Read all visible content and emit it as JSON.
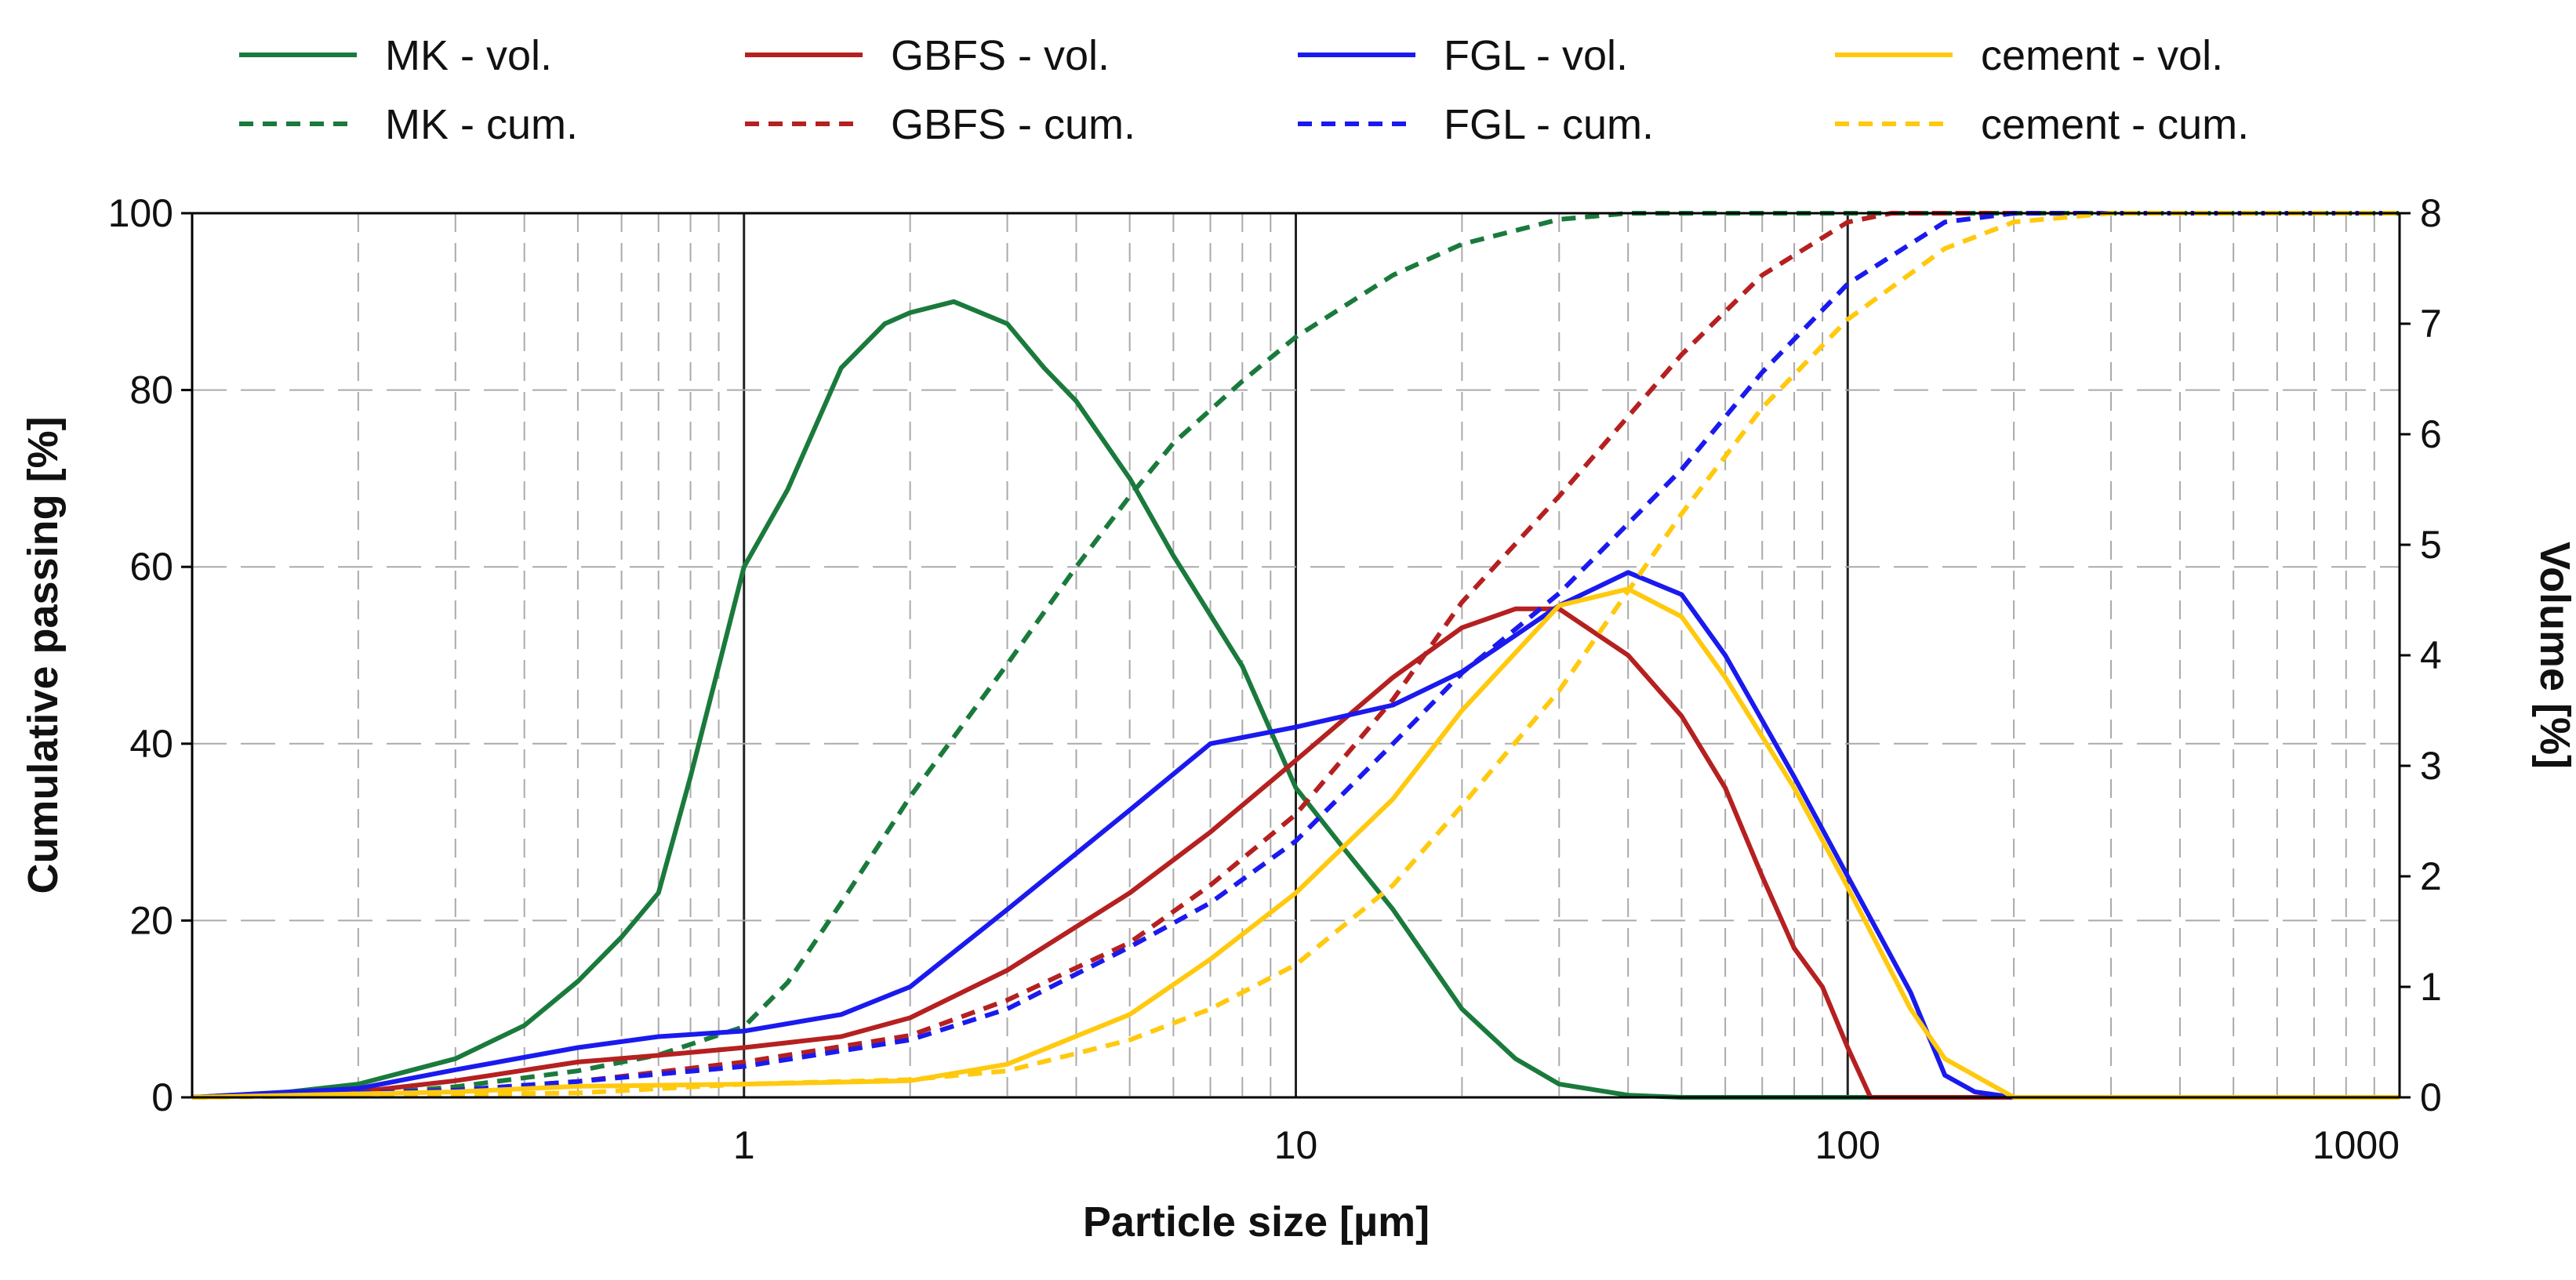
{
  "chart_data": {
    "type": "line",
    "title": "",
    "xlabel": "Particle size [µm]",
    "ylabel": "Cumulative passing [%]",
    "y2label": "Volume [%]",
    "xscale": "log",
    "xlim": [
      0.1,
      1000
    ],
    "ylim": [
      0,
      100
    ],
    "y2lim": [
      0,
      8
    ],
    "x_ticks": [
      1,
      10,
      100,
      1000
    ],
    "x_tick_labels": [
      "1",
      "10",
      "100",
      "1000"
    ],
    "y_ticks": [
      0,
      20,
      40,
      60,
      80,
      100
    ],
    "y_tick_labels": [
      "0",
      "20",
      "40",
      "60",
      "80",
      "100"
    ],
    "y2_ticks": [
      0,
      1,
      2,
      3,
      4,
      5,
      6,
      7,
      8
    ],
    "y2_tick_labels": [
      "0",
      "1",
      "2",
      "3",
      "4",
      "5",
      "6",
      "7",
      "8"
    ],
    "grid": true,
    "legend_position": "top",
    "series": [
      {
        "name": "MK - vol.",
        "axis": "right",
        "style": "solid",
        "color": "#1a7a3c",
        "points": [
          [
            0.1,
            0
          ],
          [
            0.15,
            0.05
          ],
          [
            0.2,
            0.12
          ],
          [
            0.3,
            0.35
          ],
          [
            0.4,
            0.65
          ],
          [
            0.5,
            1.05
          ],
          [
            0.6,
            1.45
          ],
          [
            0.7,
            1.85
          ],
          [
            0.8,
            2.9
          ],
          [
            0.9,
            3.9
          ],
          [
            1.0,
            4.8
          ],
          [
            1.2,
            5.5
          ],
          [
            1.5,
            6.6
          ],
          [
            1.8,
            7.0
          ],
          [
            2.0,
            7.1
          ],
          [
            2.4,
            7.2
          ],
          [
            3.0,
            7.0
          ],
          [
            3.5,
            6.6
          ],
          [
            4.0,
            6.3
          ],
          [
            5.0,
            5.6
          ],
          [
            6.0,
            4.9
          ],
          [
            8.0,
            3.9
          ],
          [
            10.0,
            2.8
          ],
          [
            12.0,
            2.3
          ],
          [
            15.0,
            1.7
          ],
          [
            20.0,
            0.8
          ],
          [
            25.0,
            0.35
          ],
          [
            30.0,
            0.12
          ],
          [
            40.0,
            0.02
          ],
          [
            50.0,
            0
          ],
          [
            100,
            0
          ],
          [
            1000,
            0
          ]
        ]
      },
      {
        "name": "MK - cum.",
        "axis": "left",
        "style": "dashed",
        "color": "#1a7a3c",
        "points": [
          [
            0.1,
            0
          ],
          [
            0.2,
            0.3
          ],
          [
            0.3,
            1.2
          ],
          [
            0.5,
            3.0
          ],
          [
            0.7,
            4.8
          ],
          [
            1.0,
            8
          ],
          [
            1.2,
            13
          ],
          [
            1.5,
            22
          ],
          [
            2.0,
            34
          ],
          [
            3.0,
            49
          ],
          [
            4.0,
            60
          ],
          [
            5.0,
            68
          ],
          [
            6.0,
            74
          ],
          [
            8.0,
            81
          ],
          [
            10.0,
            86
          ],
          [
            15.0,
            93
          ],
          [
            20.0,
            96.5
          ],
          [
            30.0,
            99.3
          ],
          [
            40.0,
            100
          ],
          [
            1000,
            100
          ]
        ]
      },
      {
        "name": "GBFS - vol.",
        "axis": "right",
        "style": "solid",
        "color": "#b52020",
        "points": [
          [
            0.1,
            0
          ],
          [
            0.2,
            0.05
          ],
          [
            0.3,
            0.15
          ],
          [
            0.5,
            0.32
          ],
          [
            0.7,
            0.38
          ],
          [
            1.0,
            0.45
          ],
          [
            1.5,
            0.55
          ],
          [
            2.0,
            0.72
          ],
          [
            3.0,
            1.15
          ],
          [
            5.0,
            1.85
          ],
          [
            7.0,
            2.4
          ],
          [
            10.0,
            3.05
          ],
          [
            15.0,
            3.8
          ],
          [
            20.0,
            4.25
          ],
          [
            25.0,
            4.42
          ],
          [
            30.0,
            4.42
          ],
          [
            40.0,
            4.0
          ],
          [
            50.0,
            3.45
          ],
          [
            60.0,
            2.8
          ],
          [
            70.0,
            2.0
          ],
          [
            80.0,
            1.35
          ],
          [
            90.0,
            1.0
          ],
          [
            100.0,
            0.45
          ],
          [
            110.0,
            0
          ],
          [
            1000,
            0
          ]
        ]
      },
      {
        "name": "GBFS - cum.",
        "axis": "left",
        "style": "dashed",
        "color": "#b52020",
        "points": [
          [
            0.1,
            0
          ],
          [
            0.3,
            0.8
          ],
          [
            0.5,
            1.8
          ],
          [
            1.0,
            4.0
          ],
          [
            2.0,
            7.0
          ],
          [
            3.0,
            11
          ],
          [
            5.0,
            17.5
          ],
          [
            7.0,
            24
          ],
          [
            10.0,
            32
          ],
          [
            15.0,
            45
          ],
          [
            20.0,
            56
          ],
          [
            30.0,
            68
          ],
          [
            50.0,
            84
          ],
          [
            70.0,
            93
          ],
          [
            100.0,
            99
          ],
          [
            120.0,
            100
          ],
          [
            1000,
            100
          ]
        ]
      },
      {
        "name": "FGL - vol.",
        "axis": "right",
        "style": "solid",
        "color": "#1a1aee",
        "points": [
          [
            0.1,
            0
          ],
          [
            0.2,
            0.08
          ],
          [
            0.3,
            0.25
          ],
          [
            0.5,
            0.45
          ],
          [
            0.7,
            0.55
          ],
          [
            1.0,
            0.6
          ],
          [
            1.5,
            0.75
          ],
          [
            2.0,
            1.0
          ],
          [
            3.0,
            1.7
          ],
          [
            5.0,
            2.6
          ],
          [
            7.0,
            3.2
          ],
          [
            10.0,
            3.35
          ],
          [
            15.0,
            3.55
          ],
          [
            20.0,
            3.85
          ],
          [
            30.0,
            4.45
          ],
          [
            40.0,
            4.75
          ],
          [
            50.0,
            4.55
          ],
          [
            60.0,
            4.0
          ],
          [
            80.0,
            2.9
          ],
          [
            100.0,
            2.0
          ],
          [
            130.0,
            0.95
          ],
          [
            150.0,
            0.2
          ],
          [
            170.0,
            0.05
          ],
          [
            200.0,
            0
          ],
          [
            1000,
            0
          ]
        ]
      },
      {
        "name": "FGL - cum.",
        "axis": "left",
        "style": "dashed",
        "color": "#1a1aee",
        "points": [
          [
            0.1,
            0
          ],
          [
            0.3,
            0.8
          ],
          [
            0.5,
            1.8
          ],
          [
            1.0,
            3.5
          ],
          [
            2.0,
            6.5
          ],
          [
            3.0,
            10
          ],
          [
            5.0,
            17
          ],
          [
            7.0,
            22
          ],
          [
            10.0,
            29
          ],
          [
            15.0,
            40
          ],
          [
            20.0,
            48
          ],
          [
            30.0,
            57
          ],
          [
            50.0,
            71
          ],
          [
            70.0,
            82
          ],
          [
            100.0,
            92
          ],
          [
            150.0,
            99
          ],
          [
            200.0,
            100
          ],
          [
            1000,
            100
          ]
        ]
      },
      {
        "name": "cement - vol.",
        "axis": "right",
        "style": "solid",
        "color": "#ffc90e",
        "points": [
          [
            0.1,
            0
          ],
          [
            0.3,
            0.05
          ],
          [
            0.5,
            0.1
          ],
          [
            1.0,
            0.12
          ],
          [
            2.0,
            0.15
          ],
          [
            3.0,
            0.3
          ],
          [
            5.0,
            0.75
          ],
          [
            7.0,
            1.25
          ],
          [
            10.0,
            1.85
          ],
          [
            15.0,
            2.7
          ],
          [
            20.0,
            3.5
          ],
          [
            30.0,
            4.45
          ],
          [
            40.0,
            4.6
          ],
          [
            50.0,
            4.35
          ],
          [
            60.0,
            3.8
          ],
          [
            80.0,
            2.8
          ],
          [
            100.0,
            1.9
          ],
          [
            130.0,
            0.8
          ],
          [
            150.0,
            0.35
          ],
          [
            200.0,
            0
          ],
          [
            1000,
            0
          ]
        ]
      },
      {
        "name": "cement - cum.",
        "axis": "left",
        "style": "dashed",
        "color": "#ffc90e",
        "points": [
          [
            0.1,
            0
          ],
          [
            0.5,
            0.5
          ],
          [
            1.0,
            1.5
          ],
          [
            2.0,
            2.0
          ],
          [
            3.0,
            3.0
          ],
          [
            5.0,
            6.5
          ],
          [
            7.0,
            10
          ],
          [
            10.0,
            15
          ],
          [
            15.0,
            24
          ],
          [
            20.0,
            33
          ],
          [
            30.0,
            46
          ],
          [
            50.0,
            66
          ],
          [
            70.0,
            78
          ],
          [
            100.0,
            88
          ],
          [
            150.0,
            96
          ],
          [
            200.0,
            99
          ],
          [
            300.0,
            100
          ],
          [
            1000,
            100
          ]
        ]
      }
    ]
  }
}
